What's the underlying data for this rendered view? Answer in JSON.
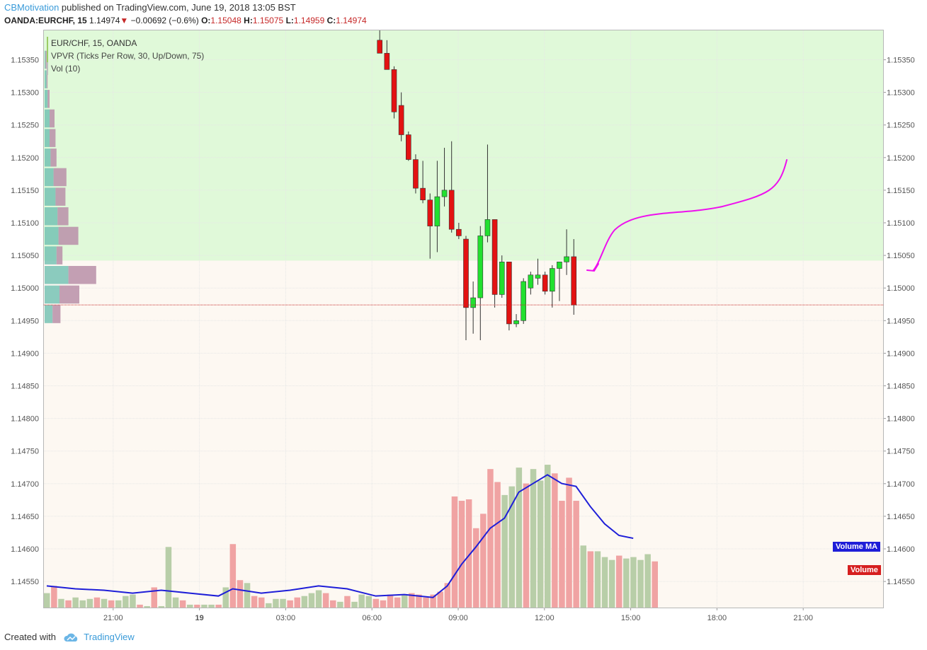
{
  "header": {
    "author": "CBMotivation",
    "published": " published on TradingView.com, June 19, 2018 13:05 BST"
  },
  "symbol_info": {
    "symbol": "OANDA:EURCHF, 15",
    "last": "1.14974",
    "change": "−0.00692 (−0.6%)",
    "o_label": "O:",
    "o_val": "1.15048",
    "h_label": "H:",
    "h_val": "1.15075",
    "l_label": "L:",
    "l_val": "1.14959",
    "c_label": "C:",
    "c_val": "1.14974",
    "down_arrow": "▼"
  },
  "legend": {
    "main": "EUR/CHF, 15, OANDA",
    "vpvr": "VPVR (Ticks Per Row, 30, Up/Down, 75)",
    "vol": "Vol (10)"
  },
  "tags": {
    "volume_ma": "Volume MA",
    "volume": "Volume"
  },
  "footer": {
    "created_with": "Created with",
    "brand": "TradingView",
    "logo_icon": "tradingview-cloud-icon"
  },
  "colors": {
    "up": "#22e02f",
    "down": "#e31212",
    "green_zone": "#e0f9d9",
    "beige_zone": "#fdf8f2",
    "ma_line": "#1e1ed8",
    "vol_up": "#b8cea8",
    "vol_down": "#f0a3a3",
    "annotation": "#ee10ee",
    "vp_up": "#6ebfb0",
    "vp_down": "#b98fa8",
    "current_price_line": "#c62828"
  },
  "chart_data": {
    "type": "candlestick",
    "title": "EUR/CHF, 15, OANDA",
    "y_ticks": [
      "1.15350",
      "1.15300",
      "1.15250",
      "1.15200",
      "1.15150",
      "1.15100",
      "1.15050",
      "1.15000",
      "1.14950",
      "1.14900",
      "1.14850",
      "1.14800",
      "1.14750",
      "1.14700",
      "1.14650",
      "1.14600",
      "1.14550"
    ],
    "y_range": [
      1.1451,
      1.15395
    ],
    "x_ticks": [
      "21:00",
      "19",
      "03:00",
      "06:00",
      "09:00",
      "12:00",
      "15:00",
      "18:00",
      "21:00"
    ],
    "current_price": 1.14974,
    "zone_boundary": 1.15042,
    "candles": [
      {
        "o": 1.1538,
        "h": 1.15395,
        "l": 1.1536,
        "c": 1.1536
      },
      {
        "o": 1.1536,
        "h": 1.1538,
        "l": 1.1534,
        "c": 1.15335
      },
      {
        "o": 1.15335,
        "h": 1.1534,
        "l": 1.1526,
        "c": 1.1527
      },
      {
        "o": 1.1528,
        "h": 1.153,
        "l": 1.15225,
        "c": 1.15235
      },
      {
        "o": 1.15235,
        "h": 1.1524,
        "l": 1.15195,
        "c": 1.15197
      },
      {
        "o": 1.15197,
        "h": 1.15205,
        "l": 1.15145,
        "c": 1.15153
      },
      {
        "o": 1.15153,
        "h": 1.15195,
        "l": 1.1513,
        "c": 1.15135
      },
      {
        "o": 1.15135,
        "h": 1.15145,
        "l": 1.15045,
        "c": 1.15095
      },
      {
        "o": 1.15095,
        "h": 1.15195,
        "l": 1.15055,
        "c": 1.1514
      },
      {
        "o": 1.1514,
        "h": 1.15215,
        "l": 1.15125,
        "c": 1.1515
      },
      {
        "o": 1.1515,
        "h": 1.15225,
        "l": 1.15085,
        "c": 1.1509
      },
      {
        "o": 1.1509,
        "h": 1.151,
        "l": 1.15075,
        "c": 1.1508
      },
      {
        "o": 1.15075,
        "h": 1.1508,
        "l": 1.1492,
        "c": 1.1497
      },
      {
        "o": 1.1497,
        "h": 1.1501,
        "l": 1.1493,
        "c": 1.14985
      },
      {
        "o": 1.14985,
        "h": 1.15095,
        "l": 1.1492,
        "c": 1.1508
      },
      {
        "o": 1.1508,
        "h": 1.1522,
        "l": 1.1507,
        "c": 1.15105
      },
      {
        "o": 1.15105,
        "h": 1.15105,
        "l": 1.1497,
        "c": 1.1499
      },
      {
        "o": 1.1499,
        "h": 1.1505,
        "l": 1.14985,
        "c": 1.1504
      },
      {
        "o": 1.1504,
        "h": 1.1504,
        "l": 1.14935,
        "c": 1.14945
      },
      {
        "o": 1.14945,
        "h": 1.1496,
        "l": 1.1494,
        "c": 1.1495
      },
      {
        "o": 1.1495,
        "h": 1.15015,
        "l": 1.14945,
        "c": 1.1501
      },
      {
        "o": 1.15,
        "h": 1.15025,
        "l": 1.1499,
        "c": 1.1502
      },
      {
        "o": 1.15015,
        "h": 1.15045,
        "l": 1.15005,
        "c": 1.1502
      },
      {
        "o": 1.1502,
        "h": 1.15025,
        "l": 1.1499,
        "c": 1.14995
      },
      {
        "o": 1.14995,
        "h": 1.15035,
        "l": 1.1497,
        "c": 1.1503
      },
      {
        "o": 1.1503,
        "h": 1.1504,
        "l": 1.1498,
        "c": 1.1504
      },
      {
        "o": 1.1504,
        "h": 1.1509,
        "l": 1.1502,
        "c": 1.15048
      },
      {
        "o": 1.15048,
        "h": 1.15075,
        "l": 1.14959,
        "c": 1.14974
      }
    ],
    "volume": [
      {
        "v": 10,
        "up": true
      },
      {
        "v": 15,
        "up": false
      },
      {
        "v": 6,
        "up": true
      },
      {
        "v": 5,
        "up": false
      },
      {
        "v": 7,
        "up": true
      },
      {
        "v": 5,
        "up": true
      },
      {
        "v": 6,
        "up": true
      },
      {
        "v": 7,
        "up": false
      },
      {
        "v": 6,
        "up": true
      },
      {
        "v": 5,
        "up": false
      },
      {
        "v": 5,
        "up": true
      },
      {
        "v": 8,
        "up": true
      },
      {
        "v": 9,
        "up": true
      },
      {
        "v": 2,
        "up": false
      },
      {
        "v": 1,
        "up": true
      },
      {
        "v": 14,
        "up": false
      },
      {
        "v": 1,
        "up": true
      },
      {
        "v": 42,
        "up": true
      },
      {
        "v": 7,
        "up": true
      },
      {
        "v": 5,
        "up": false
      },
      {
        "v": 2,
        "up": true
      },
      {
        "v": 2,
        "up": false
      },
      {
        "v": 2,
        "up": true
      },
      {
        "v": 2,
        "up": true
      },
      {
        "v": 2,
        "up": false
      },
      {
        "v": 14,
        "up": true
      },
      {
        "v": 44,
        "up": false
      },
      {
        "v": 19,
        "up": false
      },
      {
        "v": 17,
        "up": true
      },
      {
        "v": 8,
        "up": false
      },
      {
        "v": 7,
        "up": false
      },
      {
        "v": 3,
        "up": true
      },
      {
        "v": 6,
        "up": true
      },
      {
        "v": 6,
        "up": true
      },
      {
        "v": 5,
        "up": false
      },
      {
        "v": 7,
        "up": false
      },
      {
        "v": 8,
        "up": true
      },
      {
        "v": 10,
        "up": true
      },
      {
        "v": 12,
        "up": true
      },
      {
        "v": 10,
        "up": false
      },
      {
        "v": 5,
        "up": false
      },
      {
        "v": 4,
        "up": true
      },
      {
        "v": 8,
        "up": false
      },
      {
        "v": 4,
        "up": true
      },
      {
        "v": 9,
        "up": true
      },
      {
        "v": 8,
        "up": true
      },
      {
        "v": 6,
        "up": false
      },
      {
        "v": 5,
        "up": false
      },
      {
        "v": 9,
        "up": false
      },
      {
        "v": 7,
        "up": false
      },
      {
        "v": 9,
        "up": true
      },
      {
        "v": 10,
        "up": false
      },
      {
        "v": 9,
        "up": false
      },
      {
        "v": 7,
        "up": false
      },
      {
        "v": 9,
        "up": false
      },
      {
        "v": 11,
        "up": false
      },
      {
        "v": 17,
        "up": false
      },
      {
        "v": 77,
        "up": false
      },
      {
        "v": 74,
        "up": false
      },
      {
        "v": 75,
        "up": false
      },
      {
        "v": 55,
        "up": false
      },
      {
        "v": 65,
        "up": false
      },
      {
        "v": 96,
        "up": false
      },
      {
        "v": 87,
        "up": false
      },
      {
        "v": 78,
        "up": true
      },
      {
        "v": 84,
        "up": true
      },
      {
        "v": 97,
        "up": true
      },
      {
        "v": 86,
        "up": false
      },
      {
        "v": 96,
        "up": true
      },
      {
        "v": 88,
        "up": true
      },
      {
        "v": 99,
        "up": true
      },
      {
        "v": 93,
        "up": false
      },
      {
        "v": 74,
        "up": false
      },
      {
        "v": 90,
        "up": false
      },
      {
        "v": 74,
        "up": false
      },
      {
        "v": 43,
        "up": true
      },
      {
        "v": 39,
        "up": false
      },
      {
        "v": 39,
        "up": true
      },
      {
        "v": 35,
        "up": true
      },
      {
        "v": 33,
        "up": true
      },
      {
        "v": 36,
        "up": false
      },
      {
        "v": 34,
        "up": true
      },
      {
        "v": 35,
        "up": true
      },
      {
        "v": 33,
        "up": true
      },
      {
        "v": 37,
        "up": true
      },
      {
        "v": 32,
        "up": false
      }
    ],
    "vol_scale": [
      0,
      100
    ],
    "volume_ma": [
      {
        "i": 0,
        "v": 15
      },
      {
        "i": 4,
        "v": 13
      },
      {
        "i": 8,
        "v": 12
      },
      {
        "i": 12,
        "v": 10
      },
      {
        "i": 16,
        "v": 12
      },
      {
        "i": 20,
        "v": 10
      },
      {
        "i": 24,
        "v": 8
      },
      {
        "i": 26,
        "v": 13
      },
      {
        "i": 30,
        "v": 10
      },
      {
        "i": 34,
        "v": 12
      },
      {
        "i": 38,
        "v": 15
      },
      {
        "i": 42,
        "v": 13
      },
      {
        "i": 46,
        "v": 8
      },
      {
        "i": 50,
        "v": 9
      },
      {
        "i": 54,
        "v": 7
      },
      {
        "i": 56,
        "v": 15
      },
      {
        "i": 58,
        "v": 30
      },
      {
        "i": 60,
        "v": 42
      },
      {
        "i": 62,
        "v": 55
      },
      {
        "i": 64,
        "v": 62
      },
      {
        "i": 66,
        "v": 80
      },
      {
        "i": 68,
        "v": 86
      },
      {
        "i": 70,
        "v": 92
      },
      {
        "i": 72,
        "v": 86
      },
      {
        "i": 74,
        "v": 84
      },
      {
        "i": 76,
        "v": 70
      },
      {
        "i": 78,
        "v": 58
      },
      {
        "i": 80,
        "v": 50
      },
      {
        "i": 82,
        "v": 48
      }
    ],
    "volume_profile": [
      {
        "price": 1.1535,
        "up": 1,
        "down": 1
      },
      {
        "price": 1.1532,
        "up": 2,
        "down": 1
      },
      {
        "price": 1.1529,
        "up": 3,
        "down": 2
      },
      {
        "price": 1.1526,
        "up": 5,
        "down": 5
      },
      {
        "price": 1.1523,
        "up": 5,
        "down": 6
      },
      {
        "price": 1.152,
        "up": 6,
        "down": 6
      },
      {
        "price": 1.1517,
        "up": 9,
        "down": 13
      },
      {
        "price": 1.1514,
        "up": 11,
        "down": 10
      },
      {
        "price": 1.1511,
        "up": 13,
        "down": 11
      },
      {
        "price": 1.1508,
        "up": 14,
        "down": 20
      },
      {
        "price": 1.1505,
        "up": 12,
        "down": 6
      },
      {
        "price": 1.1502,
        "up": 24,
        "down": 28
      },
      {
        "price": 1.1499,
        "up": 15,
        "down": 20
      },
      {
        "price": 1.1496,
        "up": 8,
        "down": 8
      }
    ]
  }
}
